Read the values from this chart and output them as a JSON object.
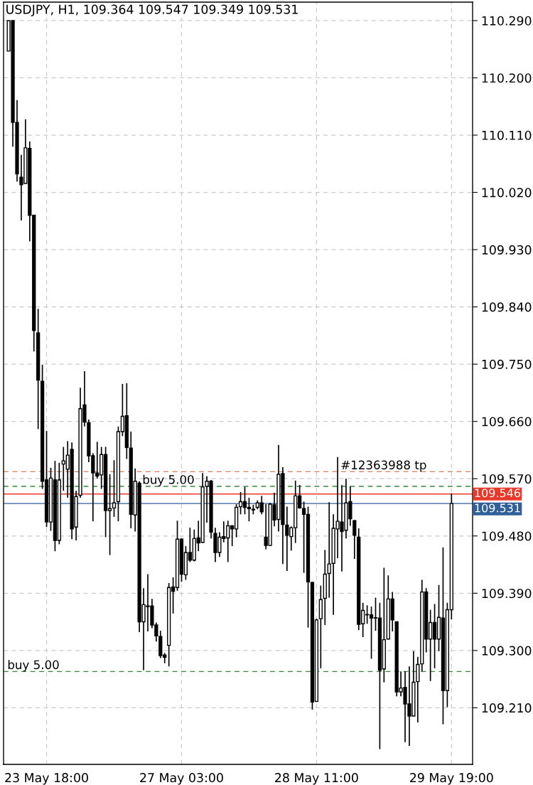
{
  "chart_data": {
    "type": "candlestick",
    "title": "USDJPY, H1, 109.364 109.547 109.349 109.531",
    "categories": [
      null,
      null,
      null,
      null,
      null,
      null,
      null,
      null,
      null,
      "23 May 18:00",
      null,
      null,
      null,
      null,
      null,
      null,
      null,
      null,
      null,
      null,
      null,
      null,
      null,
      null,
      null,
      null,
      null,
      null,
      null,
      null,
      null,
      null,
      null,
      null,
      null,
      null,
      null,
      null,
      null,
      null,
      null,
      "27 May 03:00",
      null,
      null,
      null,
      null,
      null,
      null,
      null,
      null,
      null,
      null,
      null,
      null,
      null,
      null,
      null,
      null,
      null,
      null,
      null,
      null,
      null,
      null,
      null,
      null,
      null,
      null,
      null,
      null,
      null,
      null,
      null,
      "28 May 11:00",
      null,
      null,
      null,
      null,
      null,
      null,
      null,
      null,
      null,
      null,
      null,
      null,
      null,
      null,
      null,
      null,
      null,
      null,
      null,
      null,
      null,
      null,
      null,
      null,
      null,
      null,
      null,
      null,
      null,
      null,
      null,
      "29 May 19:00"
    ],
    "ohlc": [
      [
        110.242,
        110.29,
        110.242,
        110.29
      ],
      [
        110.29,
        110.29,
        110.092,
        110.13
      ],
      [
        110.13,
        110.165,
        110.037,
        110.049
      ],
      [
        110.044,
        110.079,
        109.976,
        110.032
      ],
      [
        110.034,
        110.135,
        110.034,
        110.09
      ],
      [
        110.089,
        110.1,
        109.943,
        109.984
      ],
      [
        109.984,
        109.984,
        109.77,
        109.803
      ],
      [
        109.799,
        109.837,
        109.648,
        109.725
      ],
      [
        109.723,
        109.749,
        109.554,
        109.566
      ],
      [
        109.568,
        109.645,
        109.494,
        109.502
      ],
      [
        109.502,
        109.587,
        109.488,
        109.571
      ],
      [
        109.568,
        109.598,
        109.456,
        109.473
      ],
      [
        109.473,
        109.595,
        109.467,
        109.568
      ],
      [
        109.593,
        109.62,
        109.551,
        109.598
      ],
      [
        109.585,
        109.629,
        109.54,
        109.607
      ],
      [
        109.616,
        109.627,
        109.475,
        109.491
      ],
      [
        109.494,
        109.551,
        109.473,
        109.542
      ],
      [
        109.544,
        109.713,
        109.54,
        109.68
      ],
      [
        109.686,
        109.739,
        109.652,
        109.659
      ],
      [
        109.658,
        109.663,
        109.596,
        109.606
      ],
      [
        109.606,
        109.61,
        109.503,
        109.579
      ],
      [
        109.579,
        109.628,
        109.57,
        109.574
      ],
      [
        109.576,
        109.62,
        109.554,
        109.608
      ],
      [
        109.608,
        109.62,
        109.478,
        109.52
      ],
      [
        109.52,
        109.577,
        109.45,
        109.523
      ],
      [
        109.524,
        109.599,
        109.51,
        109.532
      ],
      [
        109.534,
        109.652,
        109.503,
        109.644
      ],
      [
        109.644,
        109.719,
        109.637,
        109.668
      ],
      [
        109.669,
        109.72,
        109.601,
        109.619
      ],
      [
        109.618,
        109.644,
        109.492,
        109.514
      ],
      [
        109.513,
        109.586,
        109.487,
        109.566
      ],
      [
        109.563,
        109.566,
        109.329,
        109.345
      ],
      [
        109.345,
        109.398,
        109.269,
        109.372
      ],
      [
        109.37,
        109.42,
        109.33,
        109.369
      ],
      [
        109.37,
        109.381,
        109.335,
        109.34
      ],
      [
        109.34,
        109.344,
        109.314,
        109.323
      ],
      [
        109.322,
        109.331,
        109.288,
        109.292
      ],
      [
        109.293,
        109.296,
        109.28,
        109.289
      ],
      [
        109.308,
        109.406,
        109.275,
        109.399
      ],
      [
        109.4,
        109.415,
        109.358,
        109.393
      ],
      [
        109.399,
        109.504,
        109.394,
        109.475
      ],
      [
        109.475,
        109.476,
        109.408,
        109.42
      ],
      [
        109.419,
        109.464,
        109.411,
        109.454
      ],
      [
        109.454,
        109.493,
        109.439,
        109.442
      ],
      [
        109.442,
        109.49,
        109.44,
        109.476
      ],
      [
        109.477,
        109.504,
        109.456,
        109.469
      ],
      [
        109.47,
        109.579,
        109.469,
        109.557
      ],
      [
        109.558,
        109.574,
        109.501,
        109.566
      ],
      [
        109.566,
        109.568,
        109.476,
        109.486
      ],
      [
        109.484,
        109.493,
        109.439,
        109.454
      ],
      [
        109.454,
        109.486,
        109.447,
        109.478
      ],
      [
        109.479,
        109.503,
        109.47,
        109.476
      ],
      [
        109.477,
        109.504,
        109.439,
        109.496
      ],
      [
        109.496,
        109.497,
        109.464,
        109.491
      ],
      [
        109.491,
        109.53,
        109.478,
        109.525
      ],
      [
        109.526,
        109.549,
        109.514,
        109.534
      ],
      [
        109.534,
        109.557,
        109.514,
        109.525
      ],
      [
        109.525,
        109.54,
        109.503,
        109.523
      ],
      [
        109.522,
        109.529,
        109.514,
        109.521
      ],
      [
        109.525,
        109.536,
        109.522,
        109.532
      ],
      [
        109.532,
        109.543,
        109.514,
        109.518
      ],
      [
        109.478,
        109.53,
        109.459,
        109.465
      ],
      [
        109.465,
        109.532,
        109.464,
        109.53
      ],
      [
        109.529,
        109.548,
        109.495,
        109.505
      ],
      [
        109.506,
        109.623,
        109.487,
        109.577
      ],
      [
        109.578,
        109.588,
        109.436,
        109.498
      ],
      [
        109.497,
        109.526,
        109.425,
        109.481
      ],
      [
        109.479,
        109.495,
        109.457,
        109.493
      ],
      [
        109.493,
        109.567,
        109.469,
        109.543
      ],
      [
        109.543,
        109.56,
        109.523,
        109.524
      ],
      [
        109.523,
        109.534,
        109.422,
        109.514
      ],
      [
        109.514,
        109.526,
        109.336,
        109.408
      ],
      [
        109.407,
        109.408,
        109.207,
        109.219
      ],
      [
        109.22,
        109.35,
        109.219,
        109.348
      ],
      [
        109.35,
        109.402,
        109.272,
        109.38
      ],
      [
        109.382,
        109.458,
        109.34,
        109.42
      ],
      [
        109.421,
        109.533,
        109.383,
        109.436
      ],
      [
        109.437,
        109.514,
        109.356,
        109.492
      ],
      [
        109.491,
        109.604,
        109.445,
        109.503
      ],
      [
        109.502,
        109.56,
        109.424,
        109.487
      ],
      [
        109.489,
        109.57,
        109.476,
        109.532
      ],
      [
        109.534,
        109.558,
        109.496,
        109.507
      ],
      [
        109.504,
        109.505,
        109.444,
        109.481
      ],
      [
        109.478,
        109.492,
        109.332,
        109.341
      ],
      [
        109.342,
        109.375,
        109.321,
        109.363
      ],
      [
        109.356,
        109.371,
        109.342,
        109.356
      ],
      [
        109.356,
        109.369,
        109.287,
        109.351
      ],
      [
        109.351,
        109.383,
        109.331,
        109.351
      ],
      [
        109.351,
        109.375,
        109.145,
        109.269
      ],
      [
        109.271,
        109.43,
        109.25,
        109.317
      ],
      [
        109.318,
        109.418,
        109.318,
        109.381
      ],
      [
        109.381,
        109.392,
        109.33,
        109.348
      ],
      [
        109.345,
        109.345,
        109.228,
        109.235
      ],
      [
        109.235,
        109.267,
        109.228,
        109.241
      ],
      [
        109.242,
        109.267,
        109.156,
        109.216
      ],
      [
        109.216,
        109.275,
        109.15,
        109.197
      ],
      [
        109.197,
        109.299,
        109.197,
        109.25
      ],
      [
        109.251,
        109.29,
        109.187,
        109.278
      ],
      [
        109.279,
        109.411,
        109.267,
        109.392
      ],
      [
        109.392,
        109.398,
        109.297,
        109.318
      ],
      [
        109.318,
        109.364,
        109.252,
        109.344
      ],
      [
        109.344,
        109.373,
        109.272,
        109.318
      ],
      [
        109.318,
        109.403,
        109.299,
        109.352
      ],
      [
        109.351,
        109.462,
        109.184,
        109.237
      ],
      [
        109.237,
        109.375,
        109.211,
        109.364
      ],
      [
        109.364,
        109.547,
        109.349,
        109.531
      ]
    ],
    "ylim": [
      109.121,
      110.319
    ],
    "yticks": [
      {
        "value": 109.21,
        "label": "109.210"
      },
      {
        "value": 109.3,
        "label": "109.300"
      },
      {
        "value": 109.39,
        "label": "109.390"
      },
      {
        "value": 109.48,
        "label": "109.480"
      },
      {
        "value": 109.57,
        "label": "109.570"
      },
      {
        "value": 109.66,
        "label": "109.660"
      },
      {
        "value": 109.75,
        "label": "109.750"
      },
      {
        "value": 109.84,
        "label": "109.840"
      },
      {
        "value": 109.93,
        "label": "109.930"
      },
      {
        "value": 110.02,
        "label": "110.020"
      },
      {
        "value": 110.11,
        "label": "110.110"
      },
      {
        "value": 110.2,
        "label": "110.200"
      },
      {
        "value": 110.29,
        "label": "110.290"
      }
    ],
    "ref_lines": [
      {
        "axis": "y",
        "value": 109.581,
        "label": "#12363988 tp",
        "color": "#e07b5a",
        "line_style": "dashed"
      },
      {
        "axis": "y",
        "value": 109.558,
        "label": "buy 5.00",
        "color": "#3a8a3a",
        "line_style": "dashed"
      },
      {
        "axis": "y",
        "value": 109.267,
        "label": "buy 5.00",
        "color": "#3a8a3a",
        "line_style": "dashed"
      },
      {
        "axis": "y",
        "value": 109.546,
        "label": "109.546",
        "color": "#e8392b",
        "line_style": "solid"
      },
      {
        "axis": "y",
        "value": 109.531,
        "label": "109.531",
        "color": "#30609a",
        "line_style": "solid"
      }
    ],
    "grid": true
  }
}
